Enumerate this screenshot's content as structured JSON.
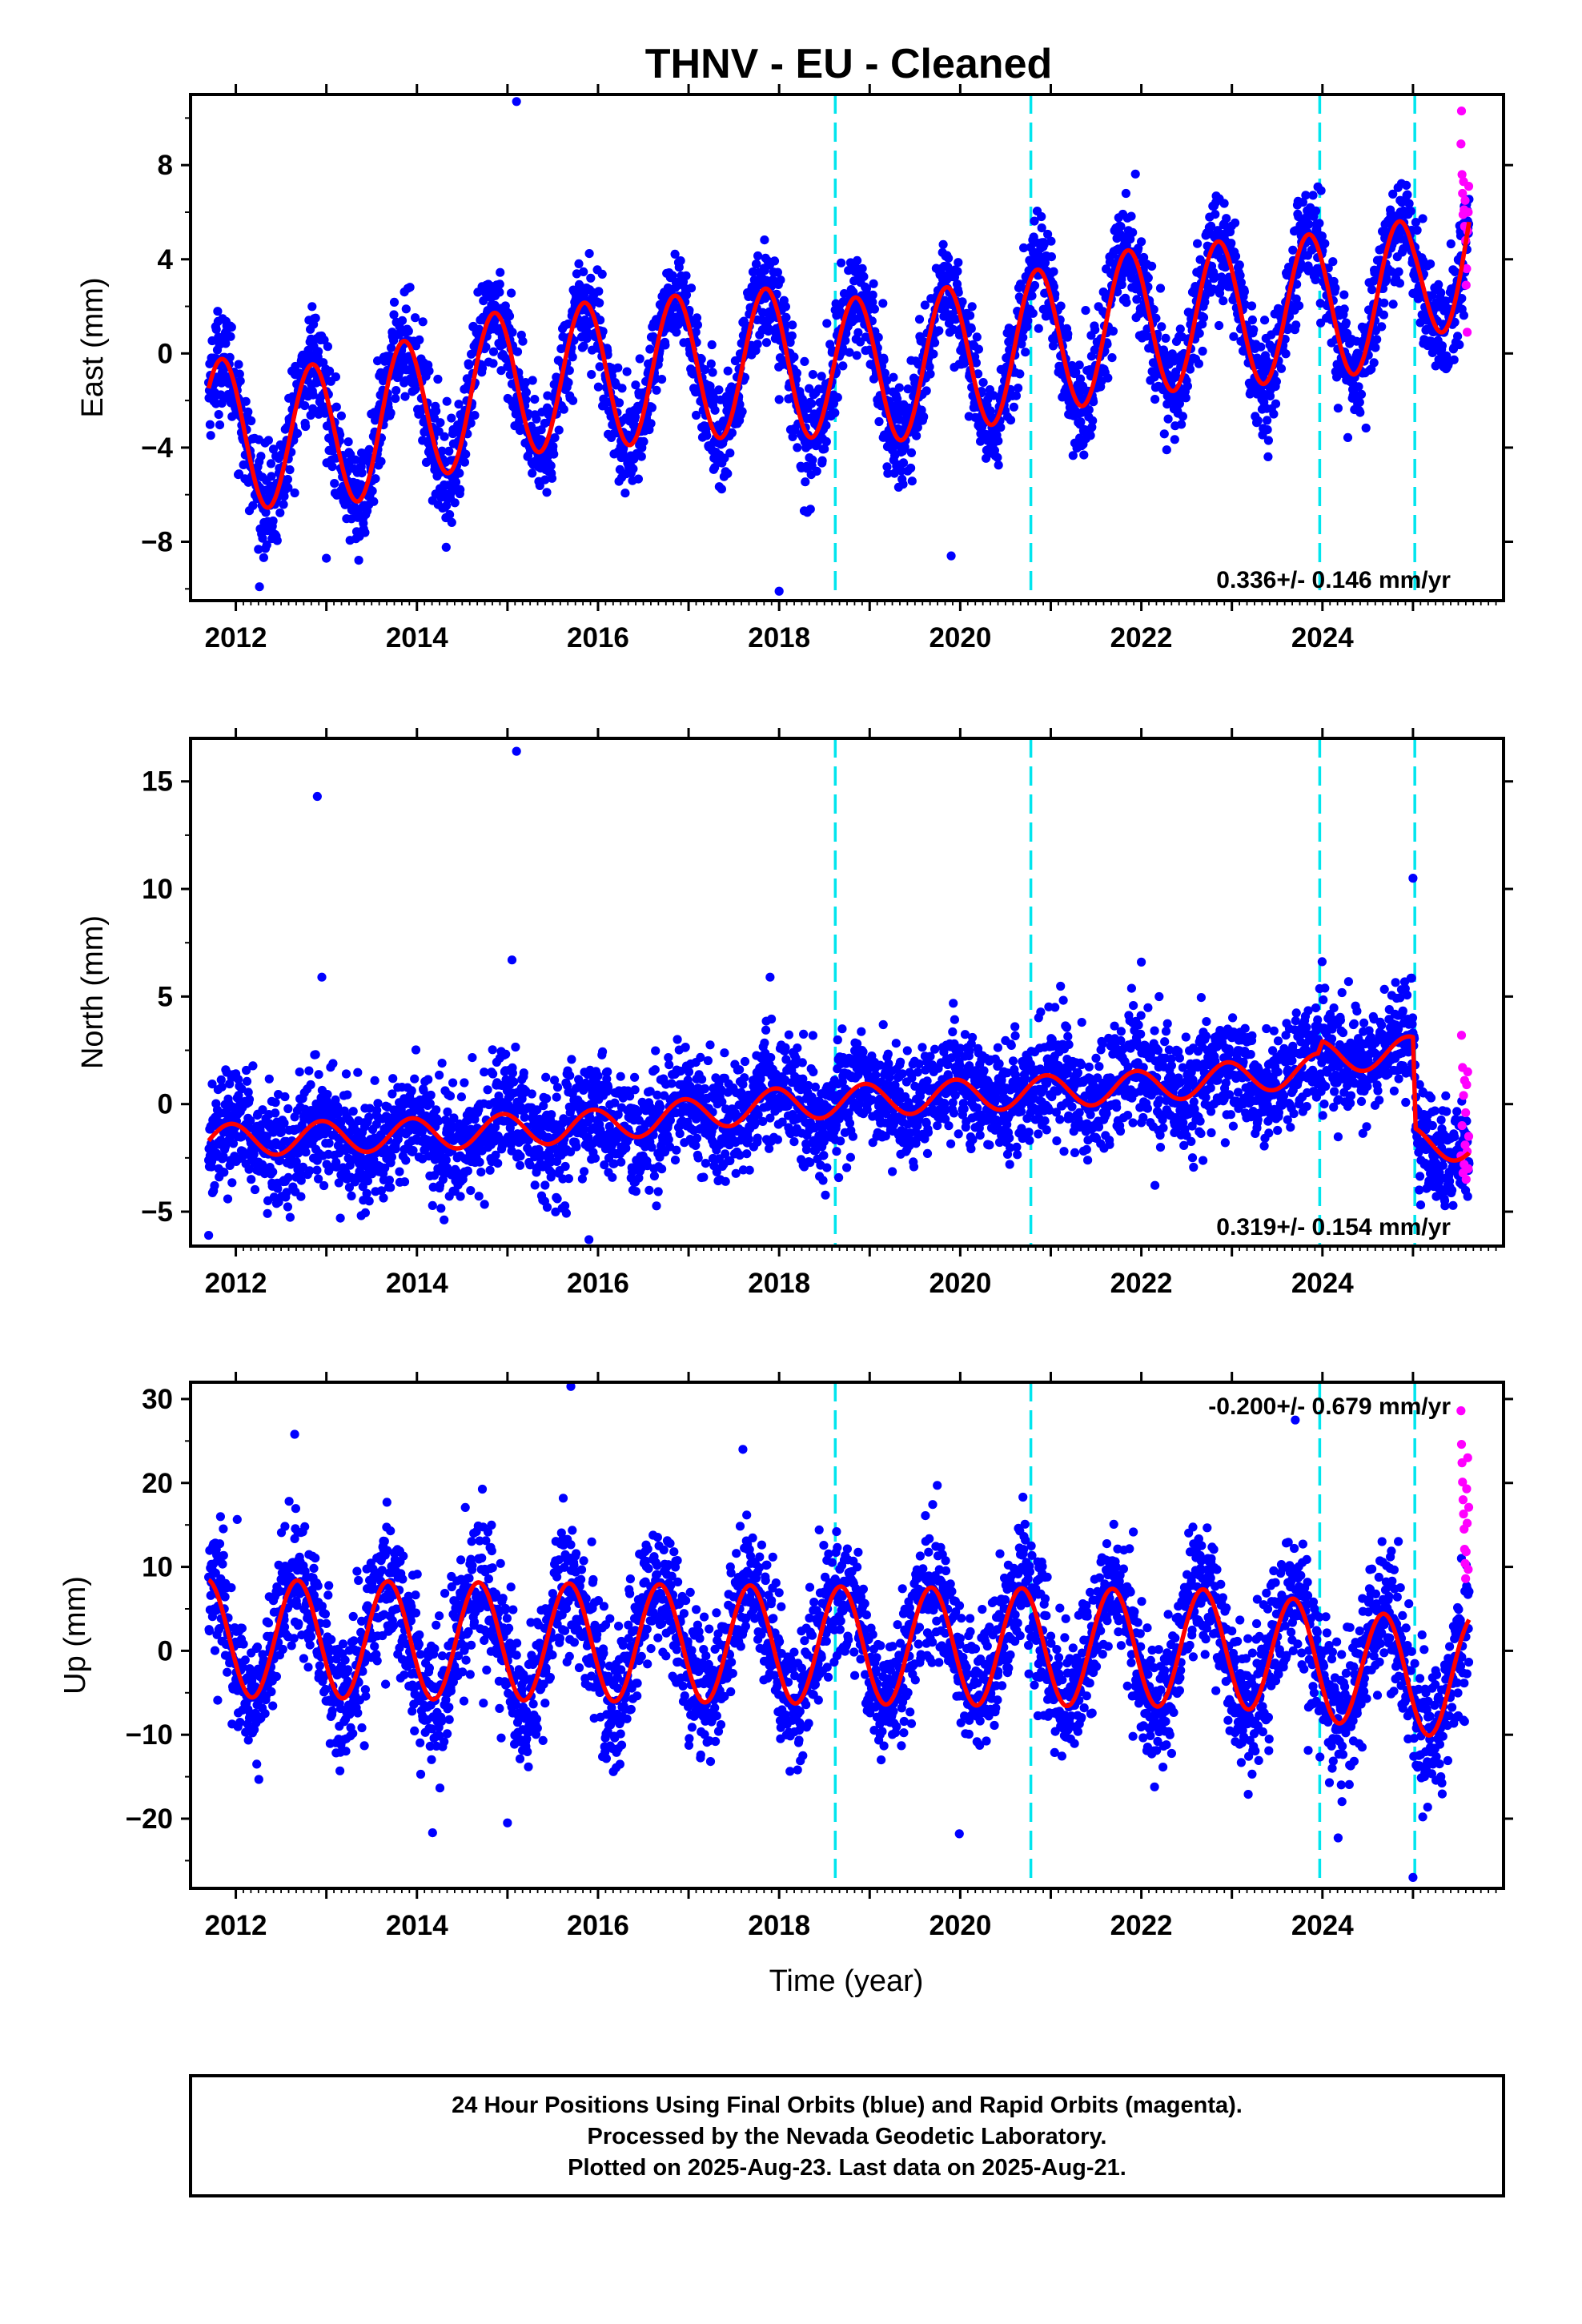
{
  "title": "THNV  - EU - Cleaned",
  "colors": {
    "final": "#0000ff",
    "rapid": "#ff00ff",
    "model": "#ff0000",
    "step": "#00e5ee"
  },
  "chart_data": [
    {
      "type": "scatter",
      "component": "east",
      "ylabel": "East (mm)",
      "xlabel": "",
      "xlim": [
        2011.5,
        2026.0
      ],
      "ylim": [
        -10.5,
        11.0
      ],
      "yticks": [
        -8,
        -4,
        0,
        4,
        8
      ],
      "ytick_labels": [
        "−8",
        "−4",
        "0",
        "4",
        "8"
      ],
      "xticks": [
        2012,
        2014,
        2016,
        2018,
        2020,
        2022,
        2024
      ],
      "xtick_labels": [
        "2012",
        "2014",
        "2016",
        "2018",
        "2020",
        "2022",
        "2024"
      ],
      "rate_label": "0.336+/- 0.146 mm/yr",
      "step_lines": [
        2018.62,
        2020.78,
        2023.97,
        2025.02
      ],
      "model": {
        "start": 2011.7,
        "end": 2025.62,
        "anchors": [
          [
            2011.7,
            -3.3
          ],
          [
            2013.0,
            -3.6
          ],
          [
            2015.0,
            -1.2
          ],
          [
            2018.0,
            -0.3
          ],
          [
            2019.0,
            -0.8
          ],
          [
            2020.0,
            -0.2
          ],
          [
            2020.78,
            0.4
          ],
          [
            2022.0,
            1.4
          ],
          [
            2023.0,
            1.7
          ],
          [
            2024.0,
            2.0
          ],
          [
            2025.0,
            2.6
          ],
          [
            2025.62,
            5.2
          ]
        ],
        "amplitude": 3.1,
        "phase": 2011.6
      },
      "noise": 1.1,
      "outliers": [
        [
          2015.1,
          10.7
        ],
        [
          2018.0,
          -10.1
        ],
        [
          2013.0,
          -8.7
        ],
        [
          2019.9,
          -8.6
        ]
      ],
      "rapid": [
        8.9,
        10.3,
        7.6,
        6.8,
        5.9,
        7.3,
        6.1,
        5.4,
        6.5,
        4.8,
        2.9,
        3.6,
        0.9,
        5.2,
        6.0,
        7.1
      ]
    },
    {
      "type": "scatter",
      "component": "north",
      "ylabel": "North (mm)",
      "xlabel": "",
      "xlim": [
        2011.5,
        2026.0
      ],
      "ylim": [
        -6.6,
        17.0
      ],
      "yticks": [
        -5,
        0,
        5,
        10,
        15
      ],
      "ytick_labels": [
        "−5",
        "0",
        "5",
        "10",
        "15"
      ],
      "xticks": [
        2012,
        2014,
        2016,
        2018,
        2020,
        2022,
        2024
      ],
      "xtick_labels": [
        "2012",
        "2014",
        "2016",
        "2018",
        "2020",
        "2022",
        "2024"
      ],
      "rate_label": "0.319+/- 0.154 mm/yr",
      "step_lines": [
        2018.62,
        2020.78,
        2023.97,
        2025.02
      ],
      "model": {
        "start": 2011.7,
        "end": 2025.62,
        "anchors": [
          [
            2011.7,
            -1.7
          ],
          [
            2014.0,
            -1.4
          ],
          [
            2016.0,
            -1.0
          ],
          [
            2018.0,
            0.0
          ],
          [
            2020.0,
            0.4
          ],
          [
            2022.0,
            0.8
          ],
          [
            2023.95,
            1.6
          ],
          [
            2024.0,
            2.2
          ],
          [
            2025.0,
            2.4
          ],
          [
            2025.03,
            -1.8
          ],
          [
            2025.62,
            -1.9
          ]
        ],
        "amplitude": 0.75,
        "phase": 2011.7
      },
      "noise": 1.3,
      "outliers": [
        [
          2012.9,
          14.3
        ],
        [
          2015.1,
          16.4
        ],
        [
          2025.0,
          10.5
        ],
        [
          2015.05,
          6.7
        ],
        [
          2012.95,
          5.9
        ],
        [
          2017.9,
          5.9
        ],
        [
          2022.0,
          6.6
        ],
        [
          2011.7,
          -6.1
        ],
        [
          2015.9,
          -6.3
        ]
      ],
      "rapid": [
        -2.4,
        3.2,
        -1.0,
        1.7,
        -3.2,
        0.4,
        -2.8,
        1.1,
        -1.9,
        -0.4,
        -3.5,
        0.9,
        -2.2,
        1.5,
        -3.0,
        -1.5
      ]
    },
    {
      "type": "scatter",
      "component": "up",
      "ylabel": "Up (mm)",
      "xlabel": "Time (year)",
      "xlim": [
        2011.5,
        2026.0
      ],
      "ylim": [
        -28.3,
        32.0
      ],
      "yticks": [
        -20,
        -10,
        0,
        10,
        20,
        30
      ],
      "ytick_labels": [
        "−20",
        "−10",
        "0",
        "10",
        "20",
        "30"
      ],
      "xticks": [
        2012,
        2014,
        2016,
        2018,
        2020,
        2022,
        2024
      ],
      "xtick_labels": [
        "2012",
        "2014",
        "2016",
        "2018",
        "2020",
        "2022",
        "2024"
      ],
      "rate_label": "-0.200+/- 0.679 mm/yr",
      "step_lines": [
        2018.62,
        2020.78,
        2023.97,
        2025.02
      ],
      "model": {
        "start": 2011.7,
        "end": 2025.62,
        "anchors": [
          [
            2011.7,
            1.5
          ],
          [
            2016.0,
            1.0
          ],
          [
            2020.0,
            0.5
          ],
          [
            2023.0,
            0.3
          ],
          [
            2024.0,
            -1.3
          ],
          [
            2025.0,
            -3.2
          ],
          [
            2025.62,
            -2.8
          ]
        ],
        "amplitude": 7.0,
        "phase": 2011.43
      },
      "noise": 4.0,
      "outliers": [
        [
          2015.7,
          31.5
        ],
        [
          2012.65,
          25.8
        ],
        [
          2017.6,
          24.0
        ],
        [
          2023.7,
          27.5
        ],
        [
          2025.0,
          -27.0
        ],
        [
          2019.99,
          -21.8
        ],
        [
          2015.0,
          -20.5
        ]
      ],
      "rapid": [
        28.6,
        24.6,
        22.4,
        20.1,
        18.0,
        16.3,
        14.5,
        12.1,
        10.4,
        8.6,
        11.8,
        19.3,
        15.2,
        23.0,
        9.7,
        17.1
      ]
    }
  ],
  "footer": {
    "line1": "24 Hour Positions Using Final Orbits (blue) and Rapid Orbits (magenta).",
    "line2": "Processed by the Nevada Geodetic Laboratory.",
    "line3": "Plotted on 2025-Aug-23. Last data on 2025-Aug-21."
  }
}
